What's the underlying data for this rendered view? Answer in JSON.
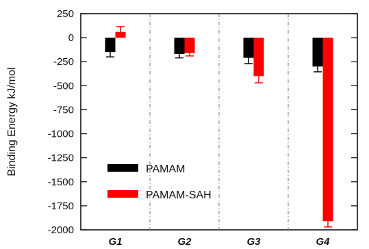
{
  "chart_data": {
    "type": "bar",
    "ylabel": "Binding Energy kJ/mol",
    "xlabel": "",
    "title": "",
    "categories": [
      "G1",
      "G2",
      "G3",
      "G4"
    ],
    "ylim": [
      -2000,
      250
    ],
    "yticks": [
      250,
      0,
      -250,
      -500,
      -750,
      -1000,
      -1250,
      -1500,
      -1750,
      -2000
    ],
    "series": [
      {
        "name": "PAMAM",
        "color": "#000000",
        "values": [
          -150,
          -170,
          -210,
          -300
        ],
        "errors": [
          50,
          40,
          60,
          55
        ]
      },
      {
        "name": "PAMAM-SAH",
        "color": "#ff0000",
        "values": [
          60,
          -160,
          -400,
          -1910
        ],
        "errors": [
          55,
          30,
          70,
          60
        ]
      }
    ],
    "legend_position": "bottom-left",
    "category_separators": "dash-dot",
    "grid": false
  }
}
